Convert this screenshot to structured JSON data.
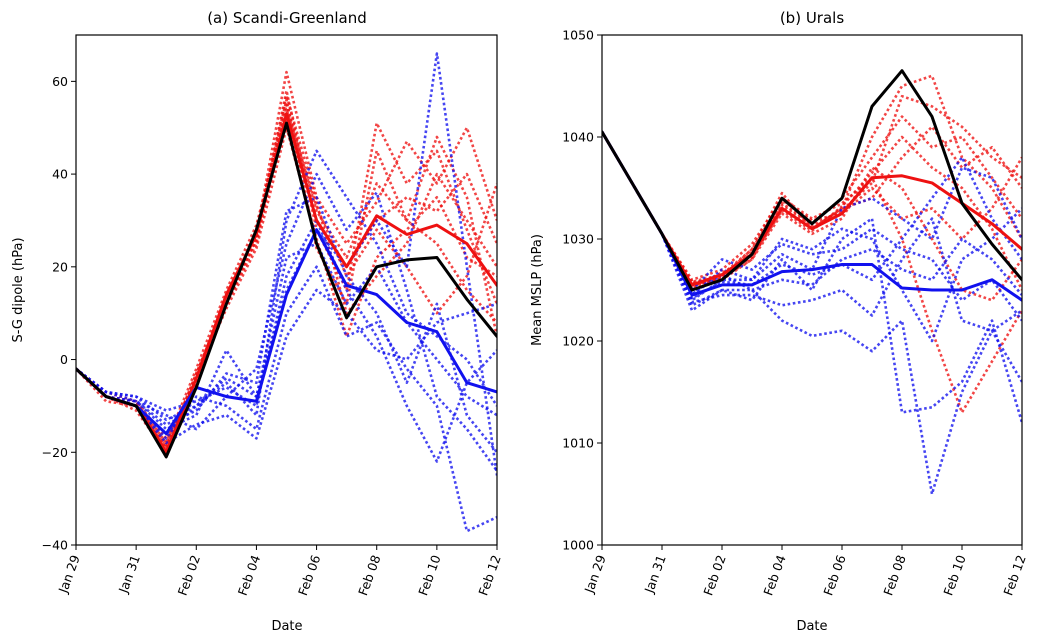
{
  "chart_data": [
    {
      "type": "line",
      "title": "(a) Scandi-Greenland",
      "xlabel": "Date",
      "ylabel": "S-G dipole (hPa)",
      "x": [
        "Jan 29",
        "Jan 30",
        "Jan 31",
        "Feb 01",
        "Feb 02",
        "Feb 03",
        "Feb 04",
        "Feb 05",
        "Feb 06",
        "Feb 07",
        "Feb 08",
        "Feb 09",
        "Feb 10",
        "Feb 11",
        "Feb 12"
      ],
      "xticks": [
        "Jan 29",
        "Jan 31",
        "Feb 02",
        "Feb 04",
        "Feb 06",
        "Feb 08",
        "Feb 10",
        "Feb 12"
      ],
      "ylim": [
        -40,
        70
      ],
      "yticks": [
        -40,
        -20,
        0,
        20,
        40,
        60
      ],
      "colors": {
        "red": "#ee1111",
        "blue": "#1111ee",
        "black": "#000000"
      },
      "series": [
        {
          "color": "black",
          "style": "solid",
          "values": [
            -2,
            -8,
            -10,
            -21,
            -6,
            12,
            28,
            51,
            25,
            9,
            20,
            21.5,
            22,
            13,
            5
          ]
        },
        {
          "color": "red",
          "style": "solid",
          "values": [
            -2,
            -8,
            -10,
            -20,
            -4,
            14,
            27,
            53,
            30,
            20,
            31,
            27,
            29,
            25,
            16
          ]
        },
        {
          "color": "blue",
          "style": "solid",
          "values": [
            -2,
            -8,
            -10,
            -16,
            -6,
            -8,
            -9,
            14,
            28,
            16,
            14,
            8,
            6,
            -5,
            -7
          ]
        },
        {
          "color": "red",
          "style": "dotted",
          "values": [
            -2,
            -8,
            -9,
            -18,
            -4,
            12,
            25,
            55,
            32,
            22,
            38,
            30,
            25,
            15,
            8
          ]
        },
        {
          "color": "red",
          "style": "dotted",
          "values": [
            -2,
            -8,
            -10,
            -19,
            -3,
            13,
            26,
            58,
            28,
            15,
            51,
            38,
            45,
            28,
            12
          ]
        },
        {
          "color": "red",
          "style": "dotted",
          "values": [
            -2,
            -7,
            -9,
            -17,
            -5,
            14,
            27,
            62,
            35,
            25,
            34,
            47,
            38,
            50,
            30
          ]
        },
        {
          "color": "red",
          "style": "dotted",
          "values": [
            -2,
            -8,
            -11,
            -20,
            -4,
            11,
            24,
            50,
            26,
            5,
            22,
            28,
            35,
            22,
            18
          ]
        },
        {
          "color": "red",
          "style": "dotted",
          "values": [
            -2,
            -8,
            -10,
            -18,
            -2,
            15,
            29,
            54,
            33,
            18,
            28,
            20,
            10,
            18,
            38
          ]
        },
        {
          "color": "red",
          "style": "dotted",
          "values": [
            -2,
            -9,
            -10,
            -19,
            -5,
            13,
            28,
            56,
            24,
            12,
            45,
            30,
            48,
            35,
            5
          ]
        },
        {
          "color": "red",
          "style": "dotted",
          "values": [
            -2,
            -8,
            -9,
            -20,
            -3,
            12,
            26,
            52,
            30,
            20,
            30,
            35,
            32,
            40,
            25
          ]
        },
        {
          "color": "red",
          "style": "dotted",
          "values": [
            -2,
            -8,
            -10,
            -19,
            -4,
            14,
            27,
            57,
            34,
            10,
            18,
            25,
            40,
            30,
            20
          ]
        },
        {
          "color": "blue",
          "style": "dotted",
          "values": [
            -2,
            -7,
            -8,
            -13,
            -10,
            -5,
            -12,
            30,
            45,
            35,
            25,
            10,
            5,
            0,
            -10
          ]
        },
        {
          "color": "blue",
          "style": "dotted",
          "values": [
            -2,
            -8,
            -9,
            -15,
            -12,
            2,
            -8,
            15,
            28,
            20,
            30,
            20,
            66,
            20,
            -25
          ]
        },
        {
          "color": "blue",
          "style": "dotted",
          "values": [
            -2,
            -8,
            -10,
            -17,
            -8,
            -10,
            -15,
            10,
            20,
            5,
            8,
            -2,
            -10,
            -37,
            -34
          ]
        },
        {
          "color": "blue",
          "style": "dotted",
          "values": [
            -2,
            -7,
            -9,
            -14,
            -11,
            -3,
            -5,
            32,
            35,
            18,
            10,
            -5,
            12,
            -12,
            -20
          ]
        },
        {
          "color": "blue",
          "style": "dotted",
          "values": [
            -2,
            -8,
            -9,
            -12,
            -15,
            -8,
            -2,
            25,
            40,
            28,
            36,
            15,
            -8,
            -15,
            -24
          ]
        },
        {
          "color": "blue",
          "style": "dotted",
          "values": [
            -2,
            -8,
            -10,
            -18,
            -14,
            -12,
            -17,
            5,
            15,
            10,
            2,
            0,
            8,
            10,
            12
          ]
        },
        {
          "color": "blue",
          "style": "dotted",
          "values": [
            -2,
            -7,
            -8,
            -11,
            -9,
            -6,
            -10,
            18,
            30,
            15,
            5,
            -10,
            -22,
            -5,
            2
          ]
        },
        {
          "color": "blue",
          "style": "dotted",
          "values": [
            -2,
            -8,
            -10,
            -16,
            -10,
            -4,
            -8,
            22,
            25,
            12,
            20,
            8,
            0,
            -8,
            -12
          ]
        }
      ]
    },
    {
      "type": "line",
      "title": "(b) Urals",
      "xlabel": "Date",
      "ylabel": "Mean MSLP (hPa)",
      "x": [
        "Jan 29",
        "Jan 30",
        "Jan 31",
        "Feb 01",
        "Feb 02",
        "Feb 03",
        "Feb 04",
        "Feb 05",
        "Feb 06",
        "Feb 07",
        "Feb 08",
        "Feb 09",
        "Feb 10",
        "Feb 11",
        "Feb 12"
      ],
      "xticks": [
        "Jan 29",
        "Jan 31",
        "Feb 02",
        "Feb 04",
        "Feb 06",
        "Feb 08",
        "Feb 10",
        "Feb 12"
      ],
      "ylim": [
        1000,
        1050
      ],
      "yticks": [
        1000,
        1010,
        1020,
        1030,
        1040,
        1050
      ],
      "colors": {
        "red": "#ee1111",
        "blue": "#1111ee",
        "black": "#000000"
      },
      "series": [
        {
          "color": "black",
          "style": "solid",
          "values": [
            1040.5,
            1035.5,
            1030.5,
            1025,
            1026,
            1028.5,
            1034,
            1031.5,
            1034,
            1043,
            1046.5,
            1042,
            1033.5,
            1029.5,
            1026
          ]
        },
        {
          "color": "red",
          "style": "solid",
          "values": [
            1040.5,
            1035.5,
            1030.5,
            1025.5,
            1026.5,
            1028.5,
            1033,
            1031,
            1032.5,
            1036,
            1036.2,
            1035.5,
            1033.5,
            1031.5,
            1029
          ]
        },
        {
          "color": "blue",
          "style": "solid",
          "values": [
            1040.5,
            1035.5,
            1030.5,
            1024.5,
            1025.5,
            1025.5,
            1026.8,
            1027,
            1027.5,
            1027.5,
            1025.2,
            1025,
            1025,
            1026,
            1024
          ]
        },
        {
          "color": "red",
          "style": "dotted",
          "values": [
            1040.5,
            1035.5,
            1030.5,
            1025.8,
            1026.5,
            1029,
            1034.5,
            1031,
            1033,
            1040,
            1045,
            1046,
            1038,
            1035,
            1030
          ]
        },
        {
          "color": "red",
          "style": "dotted",
          "values": [
            1040.5,
            1035.5,
            1030.5,
            1025.5,
            1026,
            1028,
            1033.5,
            1031.5,
            1034,
            1038,
            1042,
            1039,
            1040,
            1036,
            1032
          ]
        },
        {
          "color": "red",
          "style": "dotted",
          "values": [
            1040.5,
            1035.5,
            1030.5,
            1026,
            1027,
            1029.5,
            1034,
            1032,
            1033.5,
            1036,
            1030,
            1021,
            1013,
            1018,
            1023
          ]
        },
        {
          "color": "red",
          "style": "dotted",
          "values": [
            1040.5,
            1035.5,
            1030.5,
            1025.2,
            1026.2,
            1028,
            1032.5,
            1030.5,
            1032,
            1037,
            1035,
            1030,
            1025,
            1024,
            1028
          ]
        },
        {
          "color": "red",
          "style": "dotted",
          "values": [
            1040.5,
            1035.5,
            1030.5,
            1025.5,
            1026.5,
            1028.5,
            1033,
            1031,
            1033,
            1034,
            1038,
            1041,
            1037,
            1039,
            1035
          ]
        },
        {
          "color": "red",
          "style": "dotted",
          "values": [
            1040.5,
            1035.5,
            1030.5,
            1025.7,
            1026.3,
            1029,
            1033.8,
            1031.8,
            1032.5,
            1035,
            1032,
            1033,
            1030,
            1033,
            1038
          ]
        },
        {
          "color": "red",
          "style": "dotted",
          "values": [
            1040.5,
            1035.5,
            1030.5,
            1025.3,
            1026.7,
            1028.2,
            1032.8,
            1030.8,
            1033.2,
            1036.5,
            1040,
            1037,
            1035,
            1031,
            1025
          ]
        },
        {
          "color": "red",
          "style": "dotted",
          "values": [
            1040.5,
            1035.5,
            1030.5,
            1025.6,
            1026.1,
            1028.7,
            1033.3,
            1031.3,
            1032.8,
            1035.5,
            1044,
            1043,
            1041,
            1038,
            1036
          ]
        },
        {
          "color": "blue",
          "style": "dotted",
          "values": [
            1040.5,
            1035.5,
            1030.5,
            1023,
            1025,
            1024,
            1028,
            1025,
            1030,
            1032,
            1013,
            1013.5,
            1016,
            1022,
            1012
          ]
        },
        {
          "color": "blue",
          "style": "dotted",
          "values": [
            1040.5,
            1035.5,
            1030.5,
            1024,
            1026,
            1026,
            1030,
            1029,
            1031,
            1030,
            1025,
            1020,
            1028,
            1030,
            1033
          ]
        },
        {
          "color": "blue",
          "style": "dotted",
          "values": [
            1040.5,
            1035.5,
            1030.5,
            1023.5,
            1025,
            1025,
            1022,
            1020.5,
            1021,
            1019,
            1022,
            1005,
            1015,
            1021,
            1016
          ]
        },
        {
          "color": "blue",
          "style": "dotted",
          "values": [
            1040.5,
            1035.5,
            1030.5,
            1024.5,
            1027,
            1026,
            1028.5,
            1027,
            1033,
            1034,
            1032,
            1030,
            1037,
            1036,
            1030
          ]
        },
        {
          "color": "blue",
          "style": "dotted",
          "values": [
            1040.5,
            1035.5,
            1030.5,
            1025,
            1028,
            1027,
            1029.5,
            1028.5,
            1029,
            1031,
            1029,
            1028,
            1024,
            1026,
            1022
          ]
        },
        {
          "color": "blue",
          "style": "dotted",
          "values": [
            1040.5,
            1035.5,
            1030.5,
            1023.8,
            1024.5,
            1024.5,
            1023.5,
            1024,
            1025,
            1022.5,
            1028,
            1032,
            1022,
            1021,
            1023
          ]
        },
        {
          "color": "blue",
          "style": "dotted",
          "values": [
            1040.5,
            1035.5,
            1030.5,
            1024.2,
            1025.8,
            1025.5,
            1027.5,
            1026.5,
            1027.5,
            1026,
            1030,
            1034,
            1038,
            1032,
            1028
          ]
        },
        {
          "color": "blue",
          "style": "dotted",
          "values": [
            1040.5,
            1035.5,
            1030.5,
            1024.6,
            1026.5,
            1025,
            1026,
            1025.5,
            1028,
            1029,
            1027,
            1026,
            1030,
            1028,
            1024.5
          ]
        }
      ]
    }
  ]
}
